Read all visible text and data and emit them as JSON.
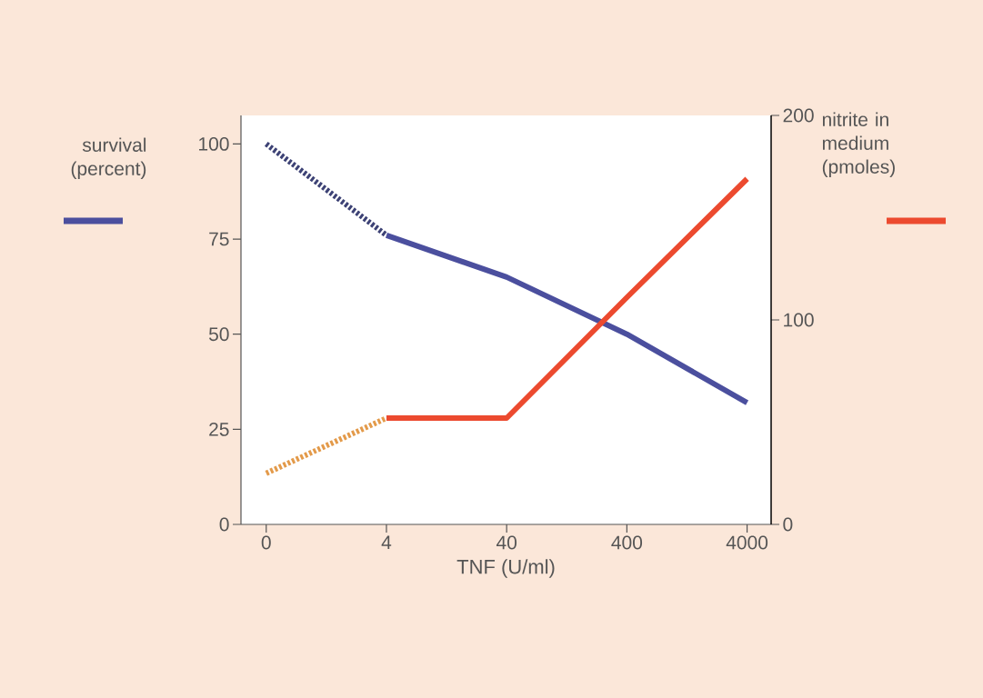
{
  "chart_data": {
    "type": "line",
    "xlabel": "TNF (U/ml)",
    "ylabel": "survival (percent)",
    "y2label": "nitrite in medium (pmoles)",
    "categories": [
      "0",
      "4",
      "40",
      "400",
      "4000"
    ],
    "series": [
      {
        "color": "#3d4275",
        "line_style": "dotted",
        "values": [
          100,
          76,
          null,
          null,
          null
        ]
      },
      {
        "color": "#4b4f9e",
        "line_style": "solid",
        "values": [
          null,
          76,
          65,
          50,
          32
        ]
      },
      {
        "color": "#e39a4a",
        "line_style": "dotted",
        "axis": "y2",
        "values": [
          25,
          52,
          null,
          null,
          null
        ]
      },
      {
        "color": "#ec4a2f",
        "line_style": "solid",
        "axis": "y2",
        "values": [
          null,
          52,
          52,
          111,
          169
        ]
      }
    ],
    "ylim": [
      0,
      107.5
    ],
    "yticks": [
      0,
      25,
      50,
      75,
      100
    ],
    "y2lim": [
      0,
      200
    ],
    "y2ticks": [
      0,
      100,
      200
    ],
    "grid": false,
    "marker": "none"
  }
}
